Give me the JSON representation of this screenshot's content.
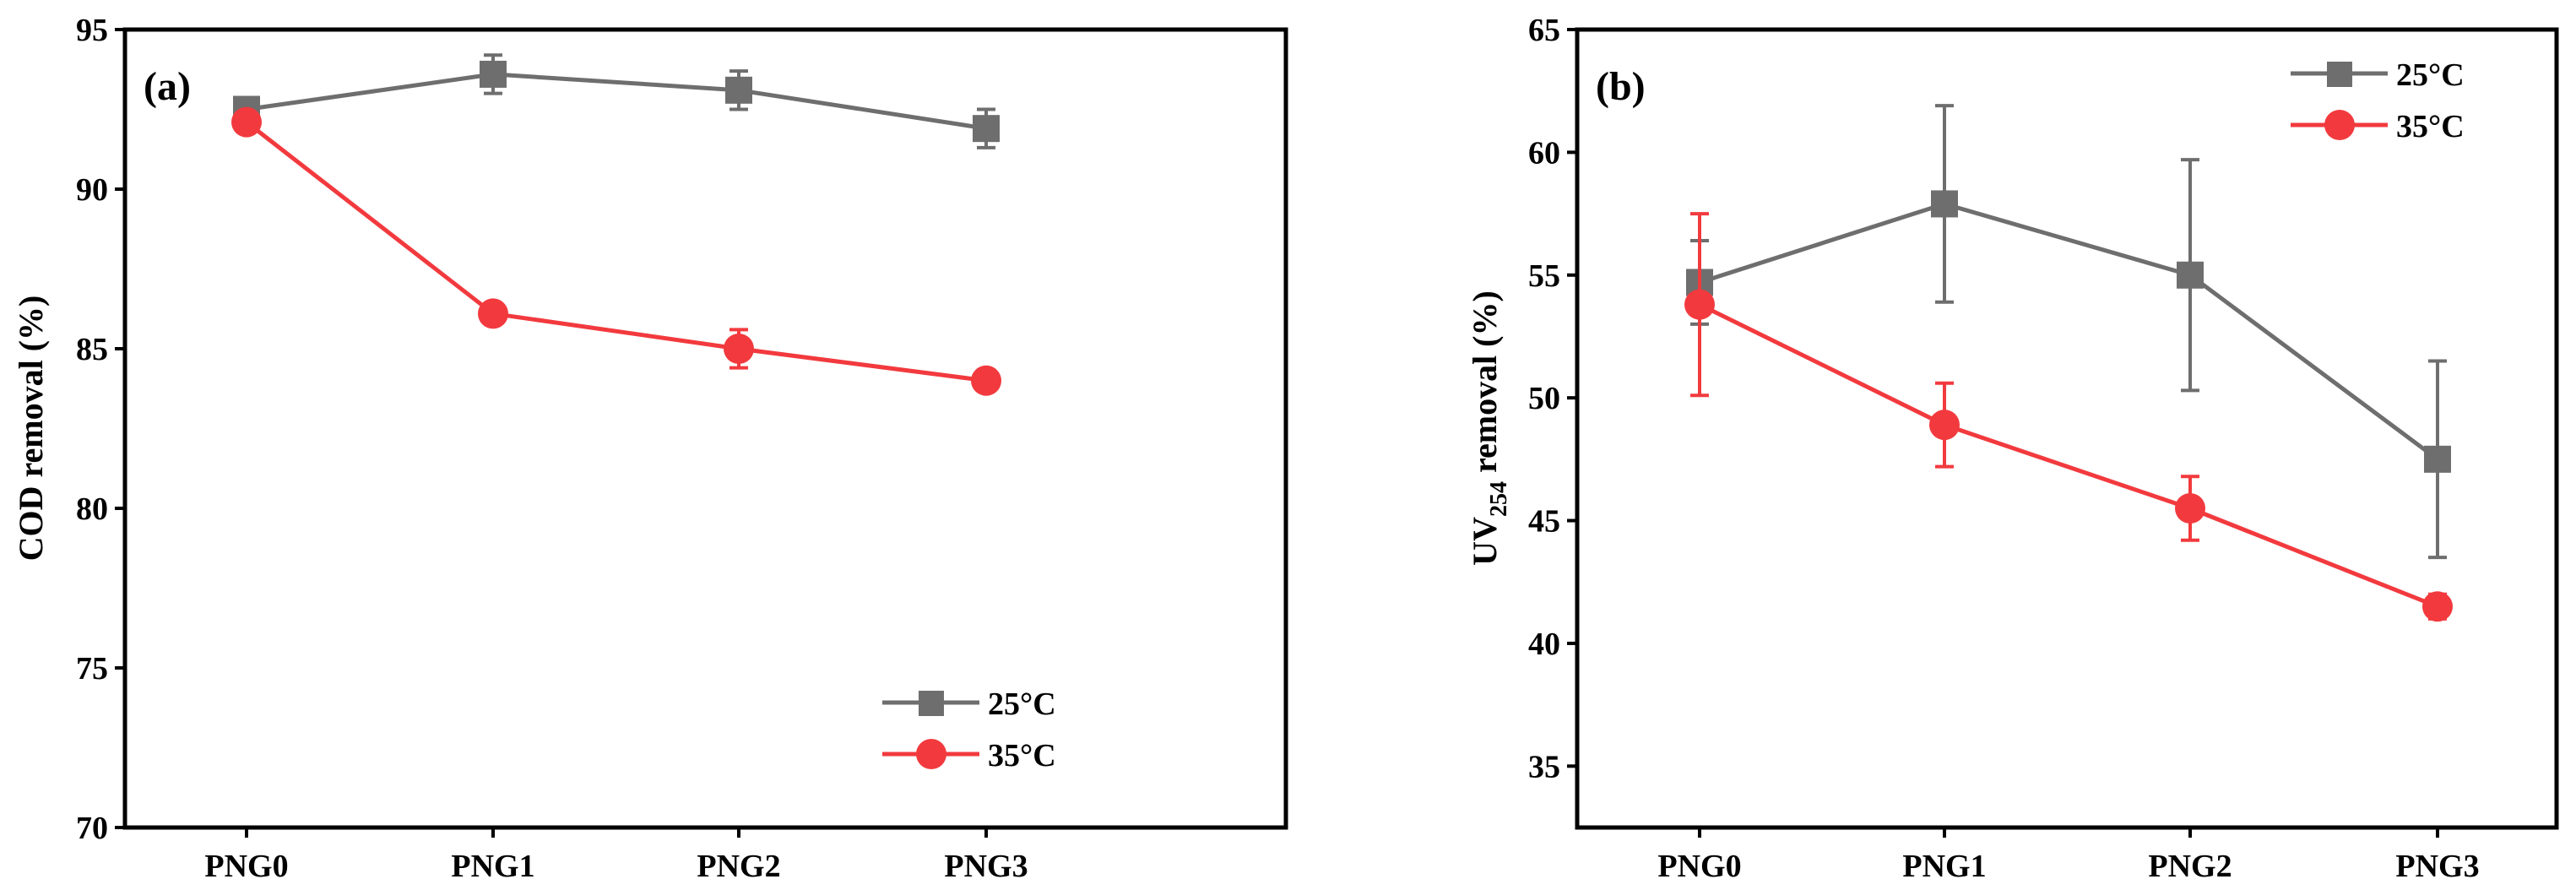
{
  "chart_data": [
    {
      "type": "line",
      "panel_label": "(a)",
      "title": "",
      "xlabel": "",
      "ylabel": "COD removal (%)",
      "categories": [
        "PNG0",
        "PNG1",
        "PNG2",
        "PNG3"
      ],
      "ylim": [
        70,
        95
      ],
      "yticks": [
        70,
        75,
        80,
        85,
        90,
        95
      ],
      "legend_position": "bottom-right",
      "series": [
        {
          "name": "25°C",
          "color": "#6e6e6e",
          "marker": "square",
          "values": [
            92.5,
            93.6,
            93.1,
            91.9
          ],
          "errors": [
            0.3,
            0.6,
            0.6,
            0.6
          ]
        },
        {
          "name": "35°C",
          "color": "#f23a3e",
          "marker": "circle",
          "values": [
            92.1,
            86.1,
            85.0,
            84.0
          ],
          "errors": [
            0.2,
            0.3,
            0.6,
            0.3
          ]
        }
      ]
    },
    {
      "type": "line",
      "panel_label": "(b)",
      "title": "",
      "xlabel": "",
      "ylabel": "UV254 removal (%)",
      "ylabel_main": "UV",
      "ylabel_sub": "254",
      "ylabel_rest": " removal (%)",
      "categories": [
        "PNG0",
        "PNG1",
        "PNG2",
        "PNG3"
      ],
      "ylim": [
        32.5,
        65
      ],
      "yticks": [
        35,
        40,
        45,
        50,
        55,
        60,
        65
      ],
      "legend_position": "top-right",
      "series": [
        {
          "name": "25°C",
          "color": "#6e6e6e",
          "marker": "square",
          "values": [
            54.7,
            57.9,
            55.0,
            47.5
          ],
          "errors": [
            1.7,
            4.0,
            4.7,
            4.0
          ]
        },
        {
          "name": "35°C",
          "color": "#f23a3e",
          "marker": "circle",
          "values": [
            53.8,
            48.9,
            45.5,
            41.5
          ],
          "errors": [
            3.7,
            1.7,
            1.3,
            0.5
          ]
        }
      ]
    }
  ]
}
